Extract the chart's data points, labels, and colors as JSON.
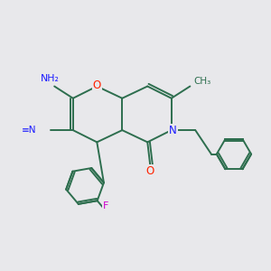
{
  "bg_color": "#e8e8eb",
  "bond_color": "#2d6e4e",
  "bond_width": 1.4,
  "atom_colors": {
    "C": "#2d6e4e",
    "N": "#1a1aff",
    "O": "#ff2200",
    "F": "#cc00cc",
    "H": "#556677"
  },
  "figsize": [
    3.0,
    3.0
  ],
  "dpi": 100,
  "xlim": [
    0,
    10
  ],
  "ylim": [
    0,
    10
  ]
}
